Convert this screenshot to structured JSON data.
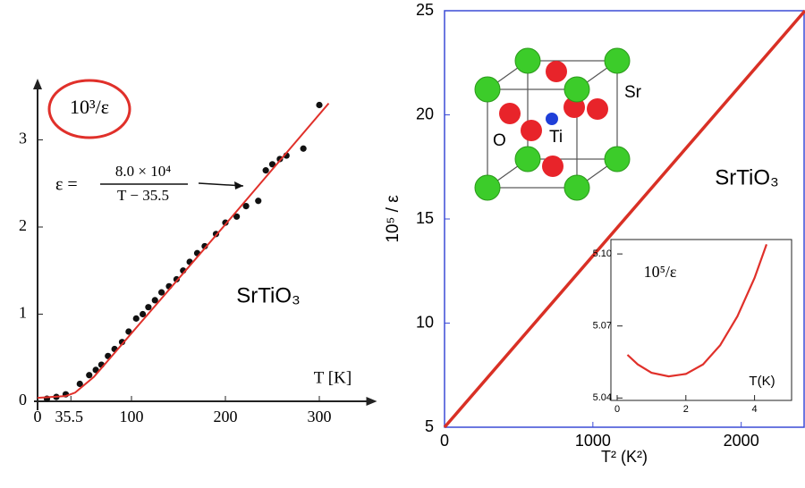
{
  "chart_data": [
    {
      "type": "line",
      "ylabel": "10³/ε",
      "xlabel": "T [K]",
      "label": "SrTiO₃",
      "formula": {
        "lhs": "ε =",
        "numerator": "8.0 × 10⁴",
        "denominator": "T − 35.5"
      },
      "xlim": [
        0,
        350
      ],
      "xticks": [
        0,
        35.5,
        100,
        200,
        300
      ],
      "ylim": [
        0,
        3.6
      ],
      "yticks": [
        0,
        1,
        2,
        3
      ],
      "series": [
        {
          "type": "scatter",
          "color": "#111111",
          "x": [
            10,
            20,
            30,
            45,
            55,
            62,
            68,
            75,
            82,
            90,
            97,
            105,
            112,
            118,
            125,
            132,
            140,
            148,
            155,
            162,
            170,
            178,
            190,
            200,
            212,
            222,
            235,
            243,
            250,
            258,
            265,
            283,
            300
          ],
          "values": [
            0.03,
            0.05,
            0.08,
            0.2,
            0.3,
            0.36,
            0.42,
            0.52,
            0.6,
            0.68,
            0.8,
            0.95,
            1.0,
            1.08,
            1.16,
            1.25,
            1.32,
            1.4,
            1.5,
            1.6,
            1.7,
            1.78,
            1.92,
            2.05,
            2.12,
            2.24,
            2.3,
            2.65,
            2.72,
            2.78,
            2.82,
            2.9,
            3.4
          ]
        },
        {
          "type": "line",
          "color": "#e0302a",
          "x": [
            0,
            30,
            40,
            60,
            100,
            200,
            310
          ],
          "values": [
            0.04,
            0.06,
            0.1,
            0.28,
            0.78,
            2.03,
            3.42
          ]
        }
      ]
    },
    {
      "type": "line",
      "xlabel": "T² (K²)",
      "ylabel": "10⁵ / ε",
      "label": "SrTiO₃",
      "atoms": {
        "corner": "Sr",
        "face": "O",
        "center": "Ti"
      },
      "xlim": [
        0,
        2430
      ],
      "xticks": [
        0,
        1000,
        2000
      ],
      "ylim": [
        5,
        25
      ],
      "yticks": [
        5,
        10,
        15,
        20,
        25
      ],
      "series": [
        {
          "type": "line",
          "color": "#d93025",
          "x": [
            0,
            2430
          ],
          "values": [
            5,
            25
          ]
        }
      ]
    },
    {
      "type": "line",
      "ylabel": "10⁵/ε",
      "xlabel": "T(K)",
      "xlim": [
        0,
        5
      ],
      "xticks": [
        0,
        2,
        4
      ],
      "ylim": [
        5.039,
        5.106
      ],
      "yticks": [
        {
          "value": 5.04,
          "label": "5.04"
        },
        5.07,
        {
          "value": 5.1,
          "label": "5.10"
        }
      ],
      "series": [
        {
          "type": "line",
          "color": "#e0302a",
          "x": [
            0.3,
            0.6,
            1,
            1.5,
            2,
            2.5,
            3,
            3.5,
            4,
            4.35
          ],
          "values": [
            5.058,
            5.054,
            5.0505,
            5.049,
            5.05,
            5.054,
            5.062,
            5.074,
            5.09,
            5.104
          ]
        }
      ]
    }
  ]
}
